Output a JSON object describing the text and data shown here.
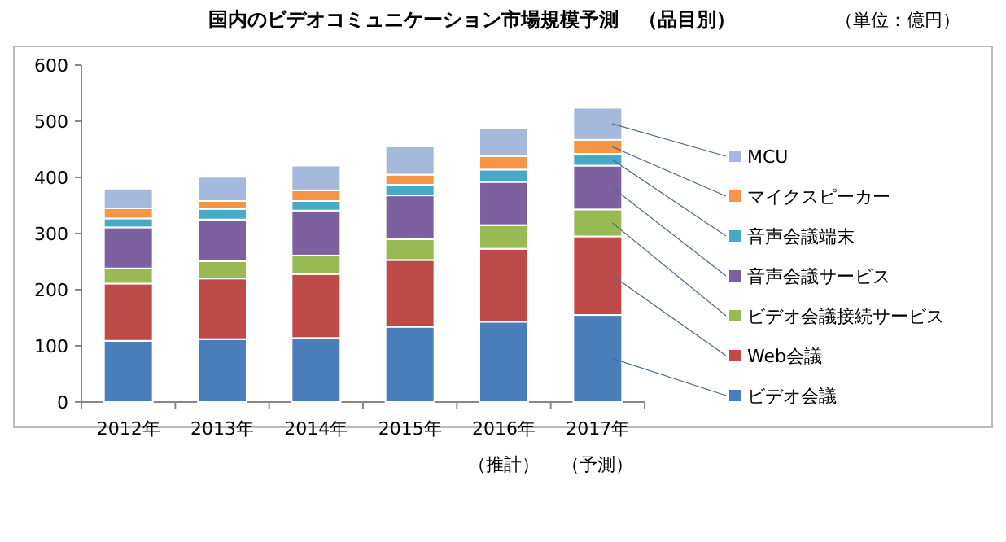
{
  "chart_data": {
    "type": "bar",
    "stacked": true,
    "title": "国内のビデオコミュニケーション市場規模予測　（品目別）",
    "annotations": [
      "（単位：億円）"
    ],
    "categories": [
      "2012年",
      "2013年",
      "2014年",
      "2015年",
      "2016年（推計）",
      "2017年（予測）"
    ],
    "series": [
      {
        "name": "ビデオ会議",
        "color": "#4a7ebb",
        "values": [
          109,
          112,
          114,
          134,
          143,
          155
        ]
      },
      {
        "name": "Web会議",
        "color": "#be4b48",
        "values": [
          102,
          108,
          114,
          119,
          130,
          140
        ]
      },
      {
        "name": "ビデオ会議接続サービス",
        "color": "#98b954",
        "values": [
          27,
          31,
          33,
          37,
          42,
          48
        ]
      },
      {
        "name": "音声会議サービス",
        "color": "#7d60a0",
        "values": [
          73,
          74,
          80,
          78,
          77,
          78
        ]
      },
      {
        "name": "音声会議端末",
        "color": "#46aac5",
        "values": [
          16,
          19,
          17,
          19,
          22,
          21
        ]
      },
      {
        "name": "マイクスピーカー",
        "color": "#f69545",
        "values": [
          18,
          14,
          19,
          18,
          24,
          25
        ]
      },
      {
        "name": "MCU",
        "color": "#a5b9dc",
        "values": [
          35,
          43,
          44,
          50,
          49,
          57
        ]
      }
    ],
    "ylim": [
      0,
      600
    ],
    "yticks": [
      0,
      100,
      200,
      300,
      400,
      500,
      600
    ],
    "grid": false,
    "legend": "right"
  }
}
